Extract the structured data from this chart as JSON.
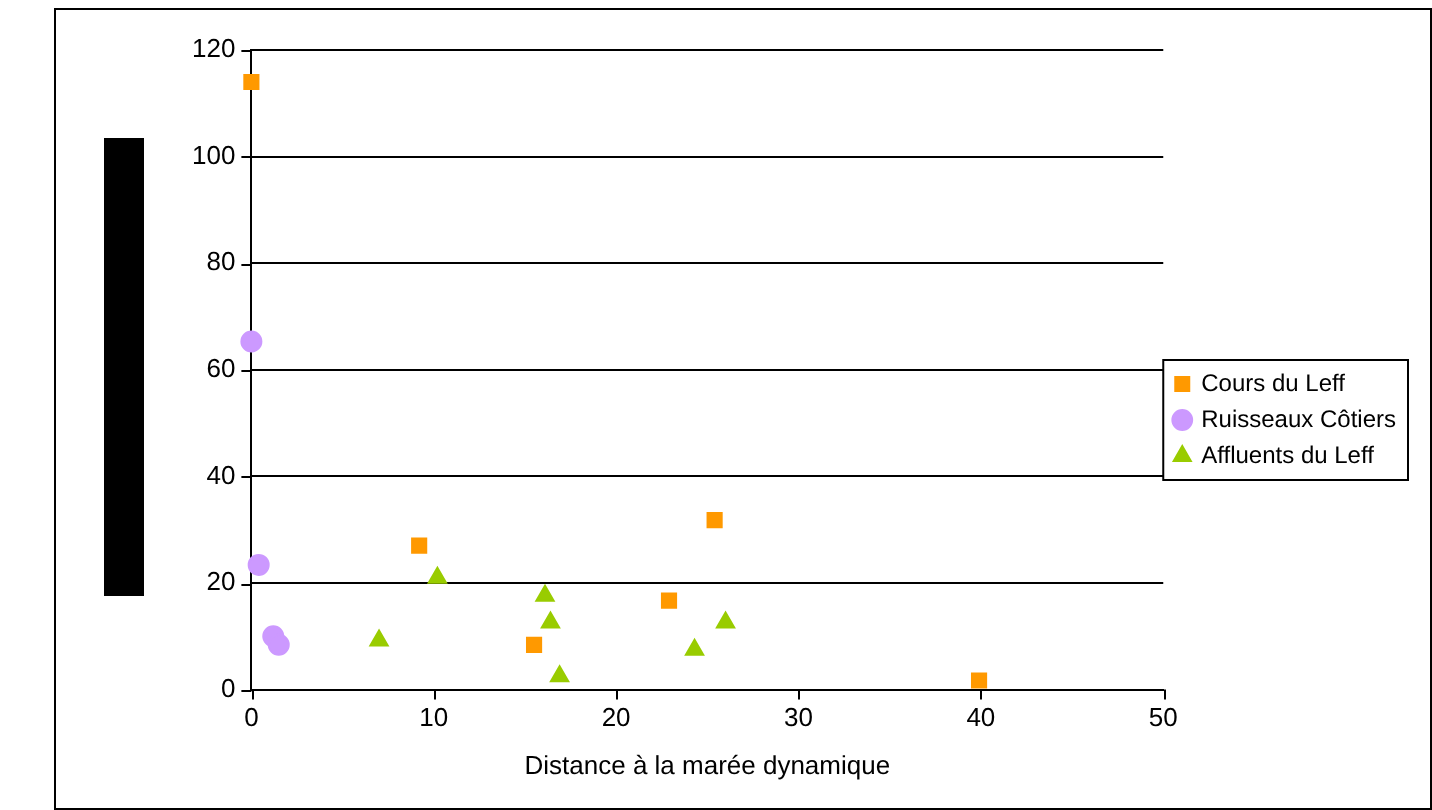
{
  "chart_data": {
    "type": "scatter",
    "xlabel": "Distance à la marée dynamique",
    "xlim": [
      0,
      50
    ],
    "xticks": [
      0,
      10,
      20,
      30,
      40,
      50
    ],
    "ylim": [
      0,
      120
    ],
    "yticks": [
      0,
      20,
      40,
      60,
      80,
      100,
      120
    ],
    "grid": "y",
    "legend": "right",
    "series": [
      {
        "name": "Cours du Leff",
        "color": "#ff9900",
        "marker": "square",
        "x": [
          0,
          9.2,
          15.5,
          22.9,
          25.4,
          39.9
        ],
        "values": [
          114,
          27,
          8.4,
          16.7,
          31.8,
          1.7
        ]
      },
      {
        "name": "Ruisseaux Côtiers",
        "color": "#cc99ff",
        "marker": "circle",
        "x": [
          0,
          0.4,
          1.2,
          1.5
        ],
        "values": [
          65.3,
          23.4,
          10,
          8.4
        ]
      },
      {
        "name": "Affluents du Leff",
        "color": "#99cc00",
        "marker": "triangle",
        "x": [
          7,
          10.2,
          16.1,
          16.4,
          16.9,
          24.3,
          26
        ],
        "values": [
          9.2,
          21,
          17.6,
          12.6,
          2.5,
          7.5,
          12.6
        ]
      }
    ]
  }
}
